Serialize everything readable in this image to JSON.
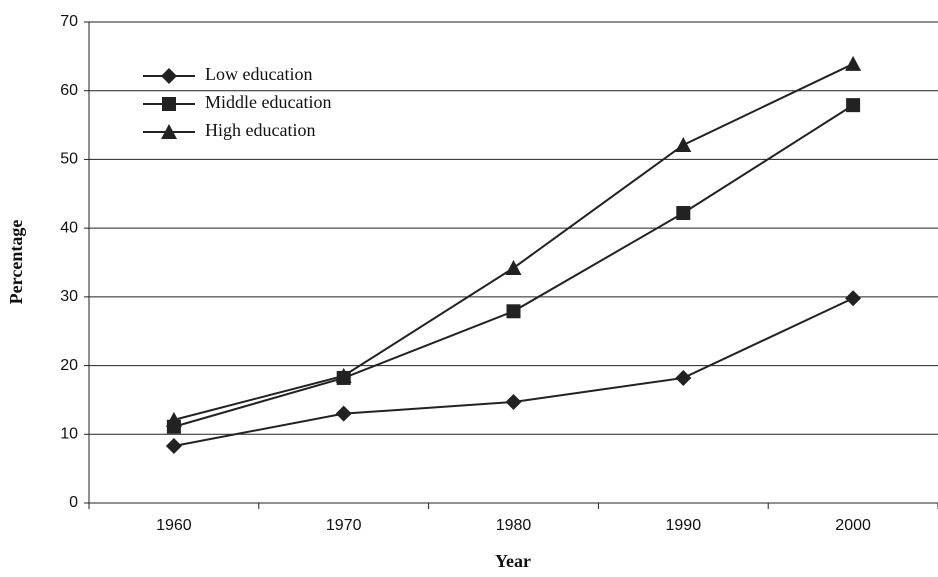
{
  "chart_data": {
    "type": "line",
    "x_label": "Year",
    "y_label": "Percentage",
    "categories": [
      "1960",
      "1970",
      "1980",
      "1990",
      "2000"
    ],
    "series": [
      {
        "name": "Low education",
        "color": "#222222",
        "marker": "diamond",
        "values": [
          8.3,
          13.0,
          14.7,
          18.2,
          29.8
        ]
      },
      {
        "name": "Middle education",
        "color": "#222222",
        "marker": "square",
        "values": [
          11.1,
          18.2,
          27.9,
          42.2,
          57.9
        ]
      },
      {
        "name": "High education",
        "color": "#222222",
        "marker": "triangle",
        "values": [
          12.1,
          18.5,
          34.2,
          52.1,
          63.9
        ]
      }
    ],
    "ylim": [
      0,
      70
    ],
    "yticks": [
      0,
      10,
      20,
      30,
      40,
      50,
      60,
      70
    ],
    "grid": true,
    "legend": "upper left"
  }
}
